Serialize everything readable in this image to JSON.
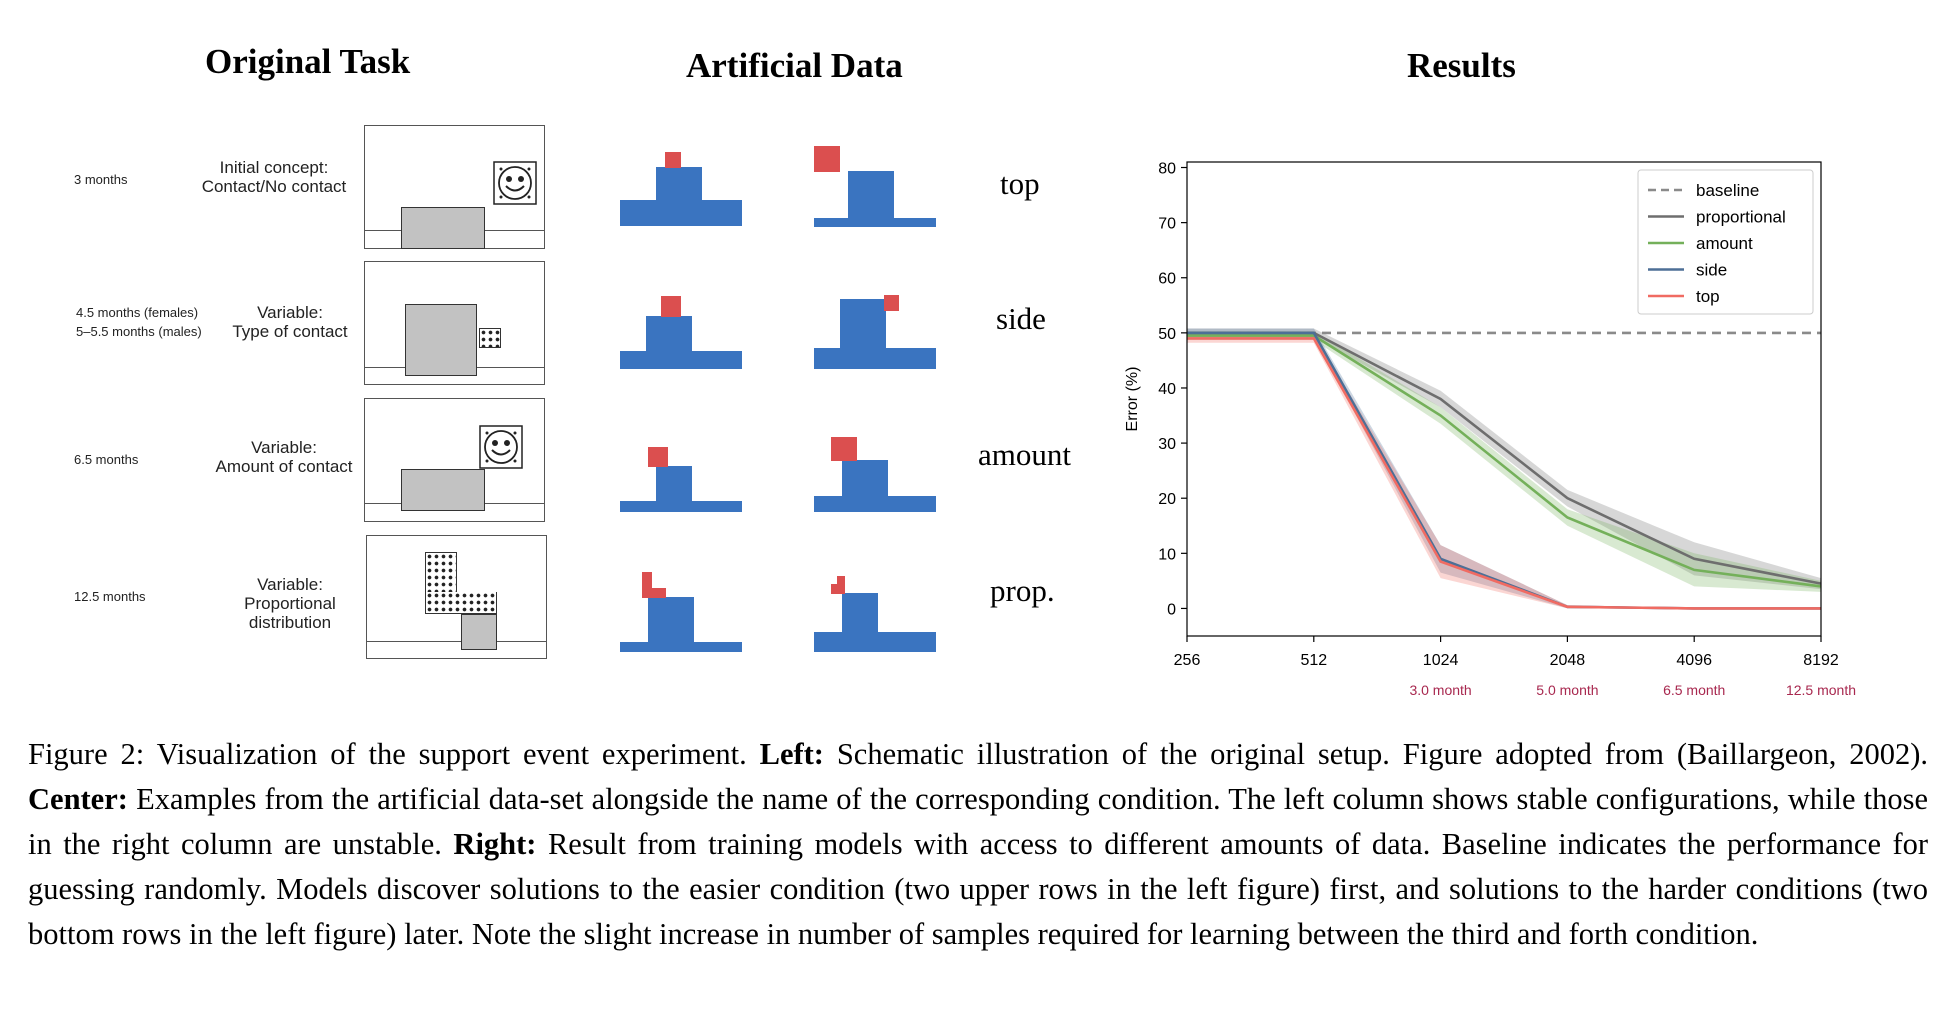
{
  "headings": {
    "left": "Original Task",
    "center": "Artificial Data",
    "right": "Results"
  },
  "original_task": {
    "rows": [
      {
        "age_lines": [
          "3 months"
        ],
        "concept_lines": [
          "Initial concept:",
          "Contact/No contact"
        ]
      },
      {
        "age_lines": [
          "4.5 months (females)",
          "5–5.5 months (males)"
        ],
        "concept_lines": [
          "Variable:",
          "Type of contact"
        ]
      },
      {
        "age_lines": [
          "6.5 months"
        ],
        "concept_lines": [
          "Variable:",
          "Amount of contact"
        ]
      },
      {
        "age_lines": [
          "12.5 months"
        ],
        "concept_lines": [
          "Variable:",
          "Proportional",
          "distribution"
        ]
      }
    ]
  },
  "artificial_data": {
    "conditions": [
      "top",
      "side",
      "amount",
      "prop."
    ],
    "colors": {
      "base": "#3a74c0",
      "block": "#db4f4f"
    }
  },
  "chart_data": {
    "type": "line",
    "title": "Results",
    "xlabel": "",
    "ylabel": "Error (%)",
    "x": [
      256,
      512,
      1024,
      2048,
      4096,
      8192
    ],
    "x_tick_labels": [
      "256",
      "512",
      "1024",
      "2048",
      "4096",
      "8192"
    ],
    "x_scale": "log2",
    "x_annotations": [
      {
        "x": 1024,
        "label": "3.0 month"
      },
      {
        "x": 2048,
        "label": "5.0 month"
      },
      {
        "x": 4096,
        "label": "6.5 month"
      },
      {
        "x": 8192,
        "label": "12.5 month"
      }
    ],
    "annotation_color": "#a8284f",
    "ylim": [
      -5,
      81
    ],
    "y_ticks": [
      0,
      10,
      20,
      30,
      40,
      50,
      60,
      70,
      80
    ],
    "grid": false,
    "legend_position": "top-right",
    "series": [
      {
        "name": "baseline",
        "style": "dashed",
        "color": "#8a8a8a",
        "values": [
          50,
          50,
          50,
          50,
          50,
          50
        ]
      },
      {
        "name": "proportional",
        "style": "solid",
        "color": "#6e6e6e",
        "values": [
          50,
          50,
          38,
          20,
          9,
          4.5
        ],
        "band": [
          [
            0.8,
            0.8
          ],
          [
            0.8,
            0.8
          ],
          [
            1.5,
            1.5
          ],
          [
            1.5,
            1.5
          ],
          [
            3,
            3
          ],
          [
            1,
            1
          ]
        ]
      },
      {
        "name": "amount",
        "style": "solid",
        "color": "#74b05a",
        "values": [
          49.5,
          49.5,
          35,
          16.5,
          7,
          4
        ],
        "band": [
          [
            0.8,
            0.8
          ],
          [
            0.8,
            0.8
          ],
          [
            1.5,
            1.5
          ],
          [
            1.5,
            1.5
          ],
          [
            3,
            3
          ],
          [
            1,
            1
          ]
        ]
      },
      {
        "name": "side",
        "style": "solid",
        "color": "#4d6f96",
        "values": [
          50,
          50,
          9,
          0.3,
          0,
          0
        ],
        "band": [
          [
            0.8,
            0.8
          ],
          [
            0.8,
            0.8
          ],
          [
            2.5,
            2.5
          ],
          [
            0.3,
            0.3
          ],
          [
            0.1,
            0.1
          ],
          [
            0.1,
            0.1
          ]
        ]
      },
      {
        "name": "top",
        "style": "solid",
        "color": "#f06b62",
        "values": [
          49,
          49,
          8.5,
          0.3,
          0,
          0
        ],
        "band": [
          [
            0.8,
            0.8
          ],
          [
            0.8,
            0.8
          ],
          [
            3,
            3
          ],
          [
            0.3,
            0.3
          ],
          [
            0.1,
            0.1
          ],
          [
            0.1,
            0.1
          ]
        ]
      }
    ]
  },
  "caption": {
    "figure_label": "Figure 2:",
    "intro": "Visualization of the support event experiment.",
    "left_label": "Left:",
    "left_text": "Schematic illustration of the original setup. Figure adopted from (Baillargeon, 2002).",
    "center_label": "Center:",
    "center_text": "Examples from the artificial data-set alongside the name of the corresponding condition. The left column shows stable configurations, while those in the right column are unstable.",
    "right_label": "Right:",
    "right_text": "Result from training models with access to different amounts of data. Baseline indicates the performance for guessing randomly. Models discover solutions to the easier condition (two upper rows in the left figure) first, and solutions to the harder conditions (two bottom rows in the left figure) later. Note the slight increase in number of samples required for learning between the third and forth condition."
  }
}
